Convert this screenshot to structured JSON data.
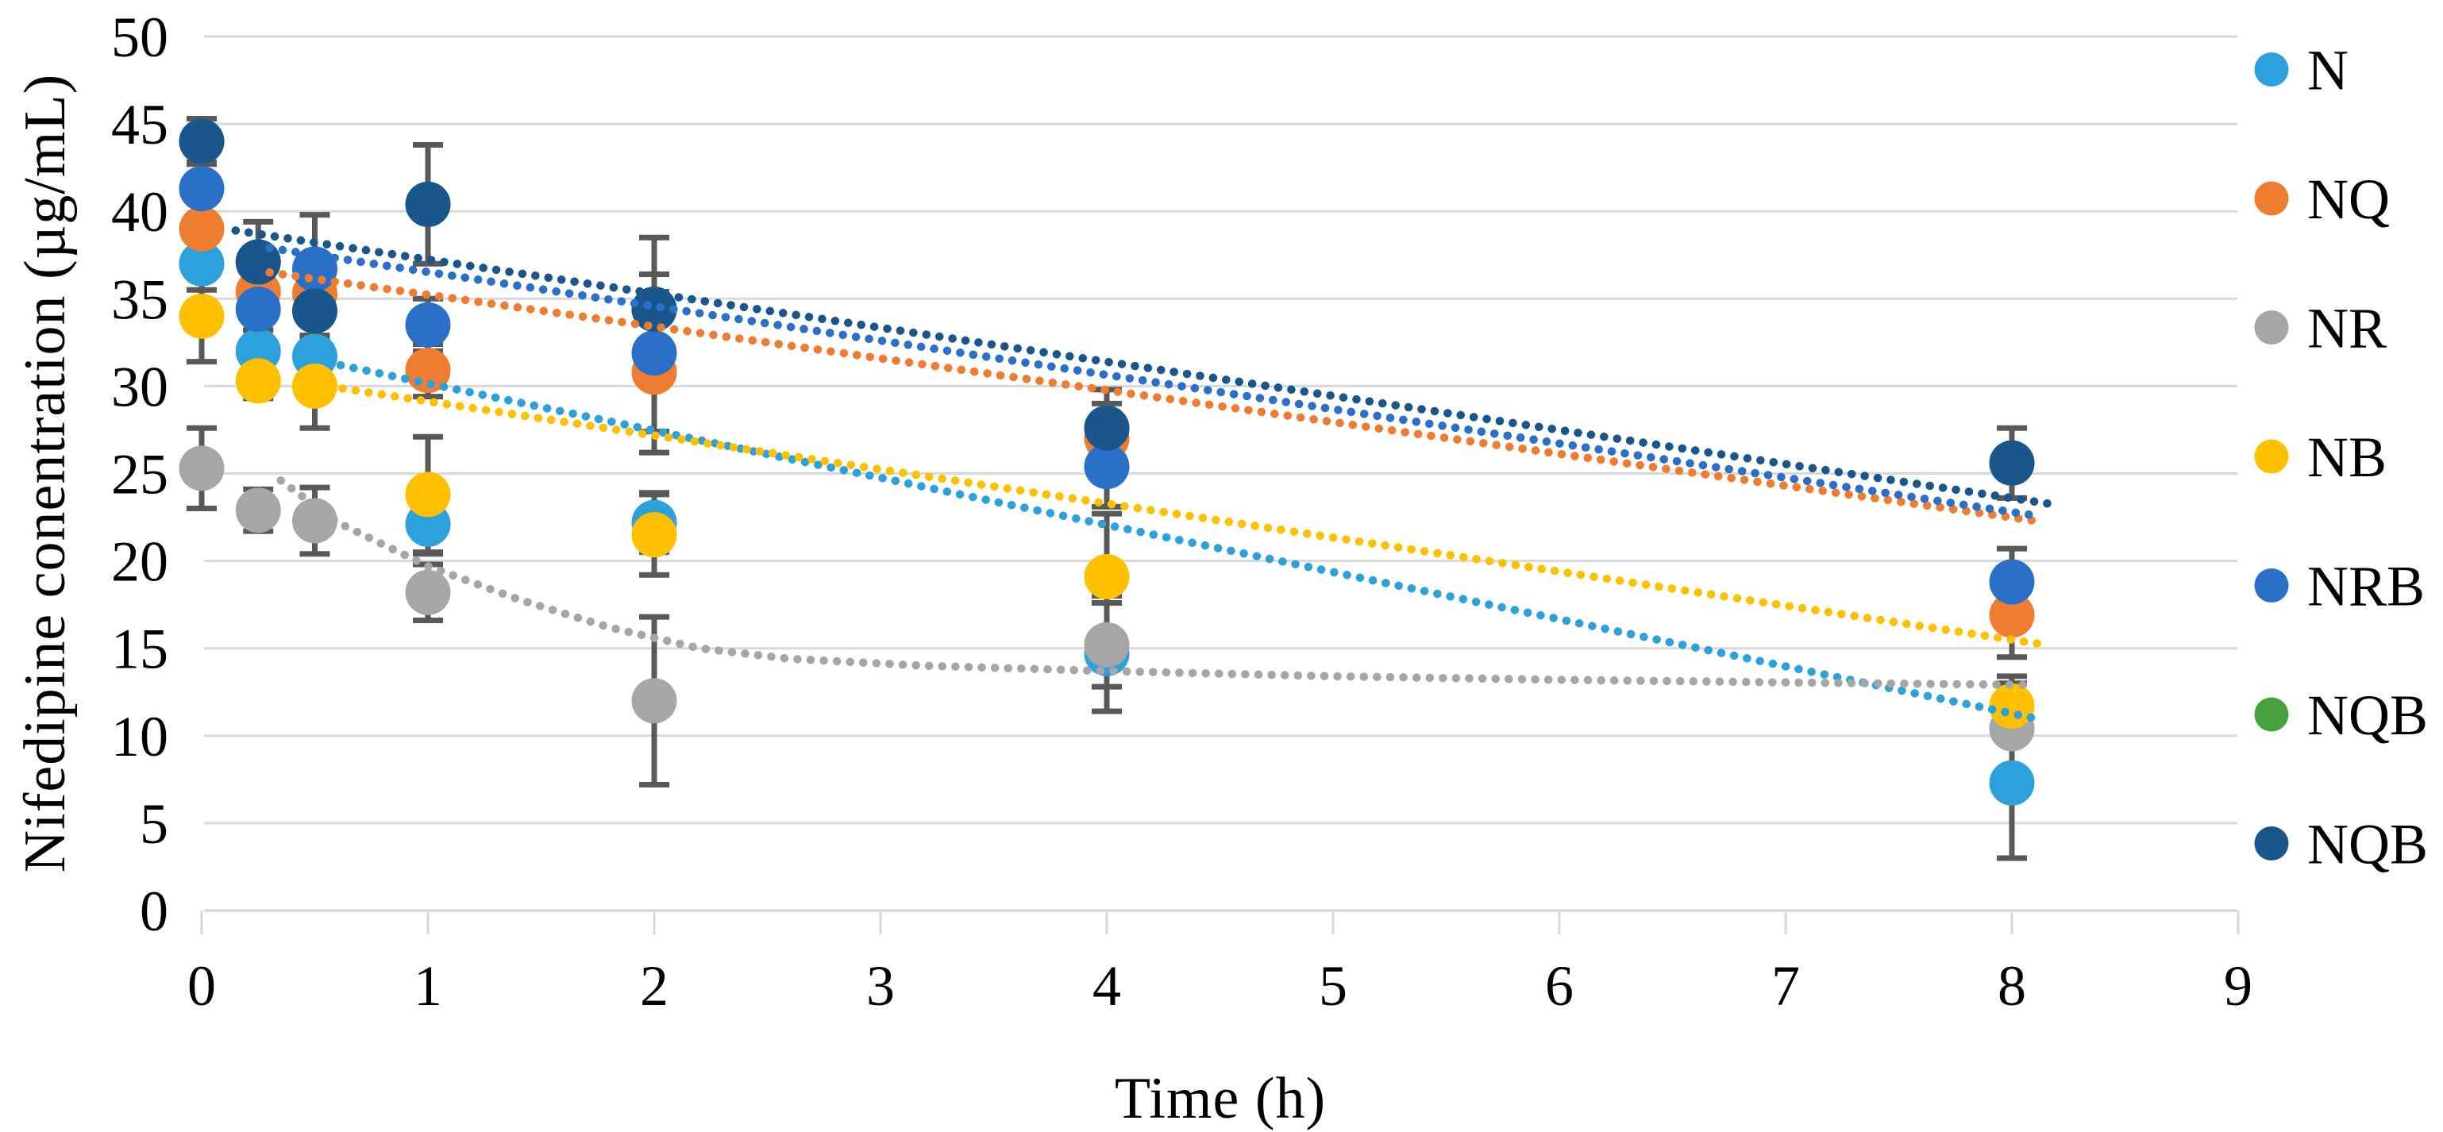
{
  "chart_data": {
    "type": "scatter",
    "title": "",
    "xlabel": "Time (h)",
    "ylabel": "Nifedipine conentration (µg/mL)",
    "xlim": [
      0,
      9
    ],
    "ylim": [
      0,
      50
    ],
    "xticks": [
      0,
      1,
      2,
      3,
      4,
      5,
      6,
      7,
      8,
      9
    ],
    "yticks": [
      0,
      5,
      10,
      15,
      20,
      25,
      30,
      35,
      40,
      45,
      50
    ],
    "grid": "horizontal-only",
    "legend_position": "right",
    "time_points_h": [
      0,
      0.25,
      0.5,
      1,
      2,
      4,
      8
    ],
    "series": [
      {
        "name": "N",
        "color": "#2CA1DB",
        "x": [
          0,
          0.25,
          0.5,
          1,
          2,
          4,
          8
        ],
        "y": [
          37.0,
          32.0,
          31.7,
          22.1,
          22.2,
          14.7,
          7.3
        ],
        "err": [
          1.5,
          1.2,
          1.2,
          1.7,
          1.7,
          3.3,
          4.3
        ],
        "trend": [
          [
            0.5,
            31.5
          ],
          [
            8.1,
            11.0
          ]
        ]
      },
      {
        "name": "NQ",
        "color": "#EE7D31",
        "x": [
          0,
          0.25,
          0.5,
          1,
          2,
          4,
          8
        ],
        "y": [
          39.0,
          35.4,
          35.3,
          30.9,
          30.8,
          27.0,
          16.9
        ],
        "err": [
          1.5,
          1.2,
          1.2,
          1.5,
          4.6,
          2.0,
          2.4
        ],
        "trend": [
          [
            0.3,
            36.5
          ],
          [
            8.1,
            22.3
          ]
        ]
      },
      {
        "name": "NR",
        "color": "#A6A6A6",
        "x": [
          0,
          0.25,
          0.5,
          1,
          2,
          4,
          8
        ],
        "y": [
          25.3,
          22.9,
          22.3,
          18.2,
          12.0,
          15.2,
          10.4
        ],
        "err": [
          2.3,
          1.2,
          1.9,
          1.6,
          4.8,
          2.4,
          2.6
        ],
        "trend": [
          [
            0.35,
            24.6
          ],
          [
            0.6,
            22.2
          ],
          [
            1.0,
            19.7
          ],
          [
            1.4,
            17.8
          ],
          [
            1.8,
            16.2
          ],
          [
            2.2,
            15.0
          ],
          [
            2.6,
            14.4
          ],
          [
            3.2,
            14.0
          ],
          [
            4.0,
            13.7
          ],
          [
            5.0,
            13.4
          ],
          [
            6.0,
            13.2
          ],
          [
            7.0,
            13.05
          ],
          [
            8.1,
            12.9
          ]
        ]
      },
      {
        "name": "NB",
        "color": "#FFC000",
        "x": [
          0,
          0.25,
          0.5,
          1,
          2,
          4,
          8
        ],
        "y": [
          34.0,
          30.3,
          30.0,
          23.8,
          21.5,
          19.1,
          11.7
        ],
        "err": [
          2.6,
          1.0,
          2.4,
          3.3,
          2.3,
          3.6,
          1.7
        ],
        "trend": [
          [
            0.45,
            30.2
          ],
          [
            8.15,
            15.2
          ]
        ]
      },
      {
        "name": "NRB",
        "color": "#2A70C8",
        "x": [
          0,
          0.25,
          0.5,
          1,
          2,
          4,
          8
        ],
        "y": [
          41.3,
          34.4,
          36.7,
          33.5,
          31.9,
          25.4,
          18.8
        ],
        "err": [
          1.5,
          1.2,
          3.1,
          1.5,
          4.5,
          2.3,
          1.9
        ],
        "trend": [
          [
            0.3,
            37.9
          ],
          [
            8.1,
            22.6
          ]
        ]
      },
      {
        "name": "NQB",
        "color": "#44A13E",
        "x": [
          0,
          0.25,
          0.5,
          1,
          2,
          4,
          8
        ],
        "y": [
          44.0,
          37.1,
          34.3,
          40.4,
          34.4,
          27.6,
          25.6
        ],
        "err": null,
        "trend": null,
        "hidden_points": true
      },
      {
        "name": "NQB",
        "color": "#18568C",
        "x": [
          0,
          0.25,
          0.5,
          1,
          2,
          4,
          8
        ],
        "y": [
          44.0,
          37.1,
          34.3,
          40.4,
          34.4,
          27.6,
          25.6
        ],
        "err": [
          1.3,
          2.3,
          1.5,
          3.4,
          4.1,
          2.2,
          2.0
        ],
        "trend": [
          [
            0.15,
            38.9
          ],
          [
            8.2,
            23.2
          ]
        ]
      }
    ],
    "legend": [
      "N",
      "NQ",
      "NR",
      "NB",
      "NRB",
      "NQB",
      "NQB"
    ],
    "error_bar_color": "#595959",
    "gridline_color": "#D9D9D9",
    "text_color": "#000000"
  }
}
